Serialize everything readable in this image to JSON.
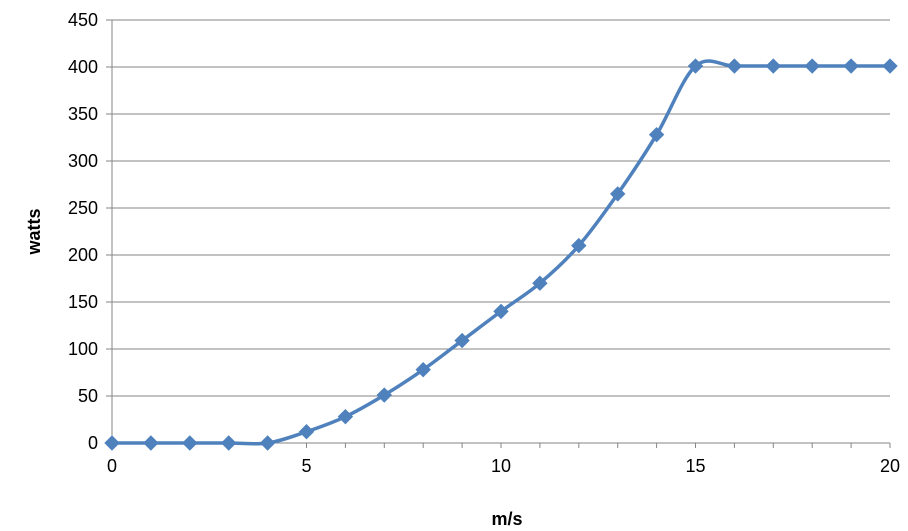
{
  "chart_data": {
    "type": "line",
    "title": "",
    "xlabel": "m/s",
    "ylabel": "watts",
    "xlim": [
      0,
      20
    ],
    "ylim": [
      0,
      450
    ],
    "x_ticks": [
      0,
      5,
      10,
      15,
      20
    ],
    "y_ticks": [
      0,
      50,
      100,
      150,
      200,
      250,
      300,
      350,
      400,
      450
    ],
    "grid": "horizontal",
    "legend": "none",
    "smooth": true,
    "series": [
      {
        "color": "#4f81bd",
        "marker": "diamond",
        "x": [
          0,
          1,
          2,
          3,
          4,
          5,
          6,
          7,
          8,
          9,
          10,
          11,
          12,
          13,
          14,
          15,
          16,
          17,
          18,
          19,
          20
        ],
        "values": [
          0,
          0,
          0,
          0,
          0,
          12,
          28,
          51,
          78,
          109,
          140,
          170,
          210,
          265,
          328,
          401,
          401,
          401,
          401,
          401,
          401
        ]
      }
    ]
  }
}
